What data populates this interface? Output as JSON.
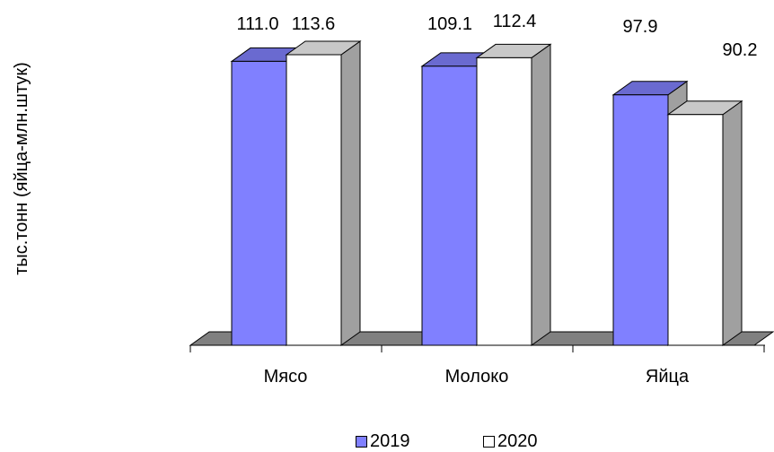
{
  "chart_data": {
    "type": "bar",
    "ylabel": "тыс.тонн (яйца-млн.штук)",
    "categories": [
      "Мясо",
      "Молоко",
      "Яйца"
    ],
    "series": [
      {
        "name": "2019",
        "values": [
          111.0,
          109.1,
          97.9
        ],
        "labels": [
          "111.0",
          "109.1",
          "97.9"
        ]
      },
      {
        "name": "2020",
        "values": [
          113.6,
          112.4,
          90.2
        ],
        "labels": [
          "113.6",
          "112.4",
          "90.2"
        ]
      }
    ],
    "ylim": [
      0,
      113.6
    ],
    "grid": false,
    "legend_position": "bottom",
    "colors": {
      "2019": "#8080ff",
      "2020": "#ffffff",
      "side": "#a0a0a0",
      "floor": "#808080"
    }
  }
}
